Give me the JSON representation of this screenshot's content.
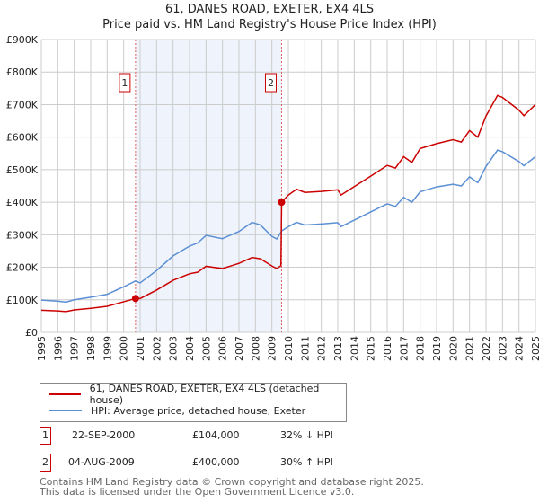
{
  "chart_data": {
    "type": "line",
    "title": "61, DANES ROAD, EXETER, EX4 4LS",
    "subtitle": "Price paid vs. HM Land Registry's House Price Index (HPI)",
    "xlim": [
      1995,
      2025
    ],
    "ylim": [
      0,
      900000
    ],
    "xticks": [
      "1995",
      "1996",
      "1997",
      "1998",
      "1999",
      "2000",
      "2001",
      "2002",
      "2003",
      "2004",
      "2005",
      "2006",
      "2007",
      "2008",
      "2009",
      "2010",
      "2011",
      "2012",
      "2013",
      "2014",
      "2015",
      "2016",
      "2017",
      "2018",
      "2019",
      "2020",
      "2021",
      "2022",
      "2023",
      "2024",
      "2025"
    ],
    "yticks": [
      {
        "v": 0,
        "l": "£0"
      },
      {
        "v": 100000,
        "l": "£100K"
      },
      {
        "v": 200000,
        "l": "£200K"
      },
      {
        "v": 300000,
        "l": "£300K"
      },
      {
        "v": 400000,
        "l": "£400K"
      },
      {
        "v": 500000,
        "l": "£500K"
      },
      {
        "v": 600000,
        "l": "£600K"
      },
      {
        "v": 700000,
        "l": "£700K"
      },
      {
        "v": 800000,
        "l": "£800K"
      },
      {
        "v": 900000,
        "l": "£900K"
      }
    ],
    "grid": true,
    "legend_position": "below",
    "shaded_range": [
      2000.72,
      2009.59
    ],
    "series": [
      {
        "name": "61, DANES ROAD, EXETER, EX4 4LS (detached house)",
        "color": "#cc0000",
        "x": [
          1995,
          1996,
          1996.5,
          1997,
          1998,
          1999,
          2000,
          2000.72,
          2001,
          2002,
          2003,
          2004,
          2004.5,
          2005,
          2006,
          2007,
          2007.8,
          2008.3,
          2009,
          2009.3,
          2009.55,
          2009.59,
          2010,
          2010.5,
          2011,
          2012,
          2013,
          2013.2,
          2014,
          2015,
          2016,
          2016.5,
          2017,
          2017.5,
          2018,
          2019,
          2020,
          2020.5,
          2021,
          2021.5,
          2022,
          2022.7,
          2023,
          2024,
          2024.3,
          2025
        ],
        "y": [
          68000,
          66000,
          64000,
          69000,
          74000,
          80000,
          94000,
          104000,
          104000,
          130000,
          160000,
          180000,
          185000,
          203000,
          196000,
          212000,
          230000,
          226000,
          204000,
          196000,
          205000,
          400000,
          422000,
          440000,
          430000,
          433000,
          438000,
          422000,
          448000,
          480000,
          513000,
          505000,
          540000,
          522000,
          565000,
          580000,
          592000,
          585000,
          620000,
          600000,
          665000,
          728000,
          722000,
          683000,
          666000,
          700000
        ]
      },
      {
        "name": "HPI: Average price, detached house, Exeter",
        "color": "#5b8fd4",
        "x": [
          1995,
          1996,
          1996.5,
          1997,
          1998,
          1999,
          2000,
          2000.72,
          2001,
          2002,
          2003,
          2004,
          2004.5,
          2005,
          2006,
          2007,
          2007.8,
          2008.3,
          2009,
          2009.3,
          2009.6,
          2010,
          2010.5,
          2011,
          2012,
          2013,
          2013.2,
          2014,
          2015,
          2016,
          2016.5,
          2017,
          2017.5,
          2018,
          2019,
          2020,
          2020.5,
          2021,
          2021.5,
          2022,
          2022.7,
          2023,
          2024,
          2024.3,
          2025
        ],
        "y": [
          99000,
          96000,
          93000,
          100000,
          108000,
          117000,
          140000,
          158000,
          152000,
          190000,
          235000,
          265000,
          275000,
          298000,
          288000,
          310000,
          338000,
          330000,
          295000,
          287000,
          312000,
          325000,
          338000,
          330000,
          333000,
          337000,
          325000,
          345000,
          370000,
          395000,
          387000,
          415000,
          400000,
          432000,
          447000,
          455000,
          450000,
          478000,
          460000,
          510000,
          560000,
          555000,
          525000,
          512000,
          540000
        ]
      }
    ],
    "sales": [
      {
        "id": "1",
        "x": 2000.72,
        "y": 104000
      },
      {
        "id": "2",
        "x": 2009.59,
        "y": 400000
      }
    ]
  },
  "table": [
    {
      "id": "1",
      "date": "22-SEP-2000",
      "price": "£104,000",
      "hpi": "32% ↓ HPI"
    },
    {
      "id": "2",
      "date": "04-AUG-2009",
      "price": "£400,000",
      "hpi": "30% ↑ HPI"
    }
  ],
  "footer": [
    "Contains HM Land Registry data © Crown copyright and database right 2025.",
    "This data is licensed under the Open Government Licence v3.0."
  ]
}
